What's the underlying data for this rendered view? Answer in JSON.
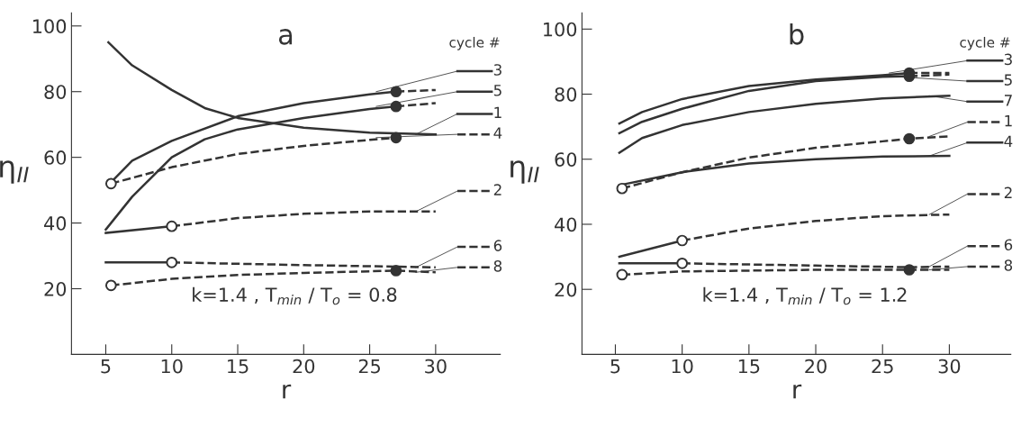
{
  "chart_data": [
    {
      "type": "line",
      "title": "a",
      "xlabel": "r",
      "ylabel": "η$_{II}$",
      "xlim": [
        2.4,
        34.9
      ],
      "ylim": [
        0,
        104
      ],
      "xticks": [
        5,
        10,
        15,
        20,
        25,
        30
      ],
      "yticks": [
        20,
        40,
        60,
        80,
        100
      ],
      "grid": false,
      "legend": "right",
      "legend_title": "cycle #",
      "annotations": [
        "k=1.4 , T$_{min}$ / T$_{o}$ = 0.8"
      ],
      "series": [
        {
          "name": "3",
          "color": "#333333",
          "line_style": "solid",
          "x": [
            5.3,
            7,
            10,
            15,
            20,
            25,
            27
          ],
          "values": [
            52,
            59,
            65,
            72.5,
            76.5,
            79.2,
            80
          ]
        },
        {
          "color": "#333333",
          "line_style": "dashed",
          "x": [
            27,
            30
          ],
          "values": [
            80,
            80.5
          ]
        },
        {
          "name": "5",
          "color": "#333333",
          "line_style": "solid",
          "x": [
            5,
            7,
            10,
            12.5,
            15,
            20,
            25,
            27
          ],
          "values": [
            38,
            48,
            60,
            65.5,
            68.5,
            72,
            74.7,
            75.5
          ]
        },
        {
          "color": "#333333",
          "line_style": "dashed",
          "x": [
            27,
            30
          ],
          "values": [
            75.5,
            76.5
          ]
        },
        {
          "name": "4",
          "color": "#333333",
          "line_style": "dashed",
          "x": [
            5.4,
            10,
            15,
            20,
            25,
            27
          ],
          "values": [
            52,
            57,
            61,
            63.5,
            65.3,
            66
          ]
        },
        {
          "name": "1",
          "color": "#333333",
          "line_style": "solid",
          "x": [
            5.2,
            7,
            10,
            12.5,
            15,
            20,
            25,
            30
          ],
          "values": [
            95,
            88,
            80.5,
            75,
            72,
            69,
            67.5,
            67
          ]
        },
        {
          "name": "2",
          "color": "#333333",
          "line_style": "dashed",
          "x": [
            10,
            15,
            20,
            25,
            30
          ],
          "values": [
            39,
            41.5,
            42.8,
            43.5,
            43.5
          ]
        },
        {
          "color": "#333333",
          "line_style": "solid",
          "x": [
            5,
            10
          ],
          "values": [
            37,
            39
          ]
        },
        {
          "name": "6",
          "color": "#333333",
          "line_style": "dashed",
          "x": [
            10,
            20,
            30
          ],
          "values": [
            28,
            27.2,
            26.5
          ]
        },
        {
          "color": "#333333",
          "line_style": "solid",
          "x": [
            5,
            10
          ],
          "values": [
            28,
            28
          ]
        },
        {
          "name": "8",
          "color": "#333333",
          "line_style": "dashed",
          "x": [
            5.4,
            10,
            15,
            20,
            27,
            30
          ],
          "values": [
            21,
            23,
            24.2,
            24.8,
            25.5,
            25
          ]
        },
        {
          "type": "scatter",
          "marker": "circle",
          "color": "#ffffff",
          "x": [
            5.4,
            10,
            10,
            5.4
          ],
          "values": [
            52,
            39,
            28,
            21
          ]
        },
        {
          "type": "scatter",
          "marker": "circle",
          "color": "#333333",
          "x": [
            27,
            27,
            27,
            27
          ],
          "values": [
            80,
            75.5,
            66,
            25.5
          ]
        }
      ]
    },
    {
      "type": "line",
      "title": "b",
      "xlabel": "r",
      "ylabel": "η$_{II}$",
      "xlim": [
        2.5,
        34.6
      ],
      "ylim": [
        0,
        105
      ],
      "xticks": [
        5,
        10,
        15,
        20,
        25,
        30
      ],
      "yticks": [
        20,
        40,
        60,
        80,
        100
      ],
      "grid": false,
      "legend": "right",
      "legend_title": "cycle #",
      "annotations": [
        "k=1.4 , T$_{min}$ / T$_{o}$ = 1.2"
      ],
      "series": [
        {
          "name": "3",
          "color": "#333333",
          "line_style": "solid",
          "x": [
            5.3,
            7,
            10,
            15,
            20,
            25,
            27
          ],
          "values": [
            71,
            74.5,
            78.5,
            82.5,
            84.5,
            85.8,
            86.5
          ]
        },
        {
          "color": "#333333",
          "line_style": "dashed",
          "x": [
            27,
            30
          ],
          "values": [
            86.5,
            86.5
          ]
        },
        {
          "name": "5",
          "color": "#333333",
          "line_style": "solid",
          "x": [
            5.3,
            7,
            10,
            15,
            20,
            25,
            27
          ],
          "values": [
            68,
            71.5,
            75.5,
            81,
            84,
            85.3,
            85.5
          ]
        },
        {
          "color": "#333333",
          "line_style": "dashed",
          "x": [
            27,
            30
          ],
          "values": [
            85.5,
            86
          ]
        },
        {
          "name": "7",
          "color": "#333333",
          "line_style": "solid",
          "x": [
            5.3,
            7,
            10,
            15,
            20,
            25,
            30
          ],
          "values": [
            62,
            66.5,
            70.5,
            74.5,
            77,
            78.7,
            79.5
          ]
        },
        {
          "name": "1",
          "color": "#333333",
          "line_style": "dashed",
          "x": [
            5.5,
            10,
            15,
            20,
            25,
            27,
            30
          ],
          "values": [
            51,
            56,
            60.5,
            63.5,
            65.5,
            66.3,
            67
          ]
        },
        {
          "name": "4",
          "color": "#333333",
          "line_style": "solid",
          "x": [
            5.3,
            10,
            15,
            20,
            25,
            30
          ],
          "values": [
            52,
            56,
            58.7,
            60,
            60.8,
            61
          ]
        },
        {
          "name": "2",
          "color": "#333333",
          "line_style": "dashed",
          "x": [
            10,
            15,
            20,
            25,
            30
          ],
          "values": [
            35,
            38.7,
            41,
            42.5,
            43
          ]
        },
        {
          "color": "#333333",
          "line_style": "solid",
          "x": [
            5.3,
            10
          ],
          "values": [
            30,
            35
          ]
        },
        {
          "name": "6",
          "color": "#333333",
          "line_style": "dashed",
          "x": [
            10,
            20,
            27,
            30
          ],
          "values": [
            28,
            27.3,
            26.8,
            27
          ]
        },
        {
          "color": "#333333",
          "line_style": "solid",
          "x": [
            5.3,
            10
          ],
          "values": [
            28,
            28
          ]
        },
        {
          "name": "8",
          "color": "#333333",
          "line_style": "dashed",
          "x": [
            5.5,
            10,
            20,
            27,
            30
          ],
          "values": [
            24.5,
            25.5,
            26,
            26,
            26
          ]
        },
        {
          "type": "scatter",
          "marker": "circle",
          "color": "#ffffff",
          "x": [
            5.5,
            10,
            10,
            5.5
          ],
          "values": [
            51,
            35,
            28,
            24.5
          ]
        },
        {
          "type": "scatter",
          "marker": "circle",
          "color": "#333333",
          "x": [
            27,
            27,
            27,
            27
          ],
          "values": [
            86.5,
            85.5,
            66.3,
            26
          ]
        }
      ]
    }
  ]
}
